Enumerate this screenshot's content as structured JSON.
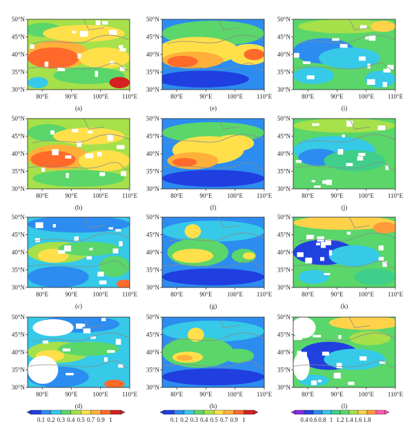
{
  "figure": {
    "panels": [
      {
        "label": "(a)",
        "scheme": "A",
        "pattern": "a"
      },
      {
        "label": "(e)",
        "scheme": "A",
        "pattern": "e"
      },
      {
        "label": "(i)",
        "scheme": "B",
        "pattern": "i"
      },
      {
        "label": "(b)",
        "scheme": "A",
        "pattern": "b"
      },
      {
        "label": "(f)",
        "scheme": "A",
        "pattern": "f"
      },
      {
        "label": "(j)",
        "scheme": "B",
        "pattern": "j"
      },
      {
        "label": "(c)",
        "scheme": "A",
        "pattern": "c"
      },
      {
        "label": "(g)",
        "scheme": "A",
        "pattern": "g"
      },
      {
        "label": "(k)",
        "scheme": "B",
        "pattern": "k"
      },
      {
        "label": "(d)",
        "scheme": "A",
        "pattern": "d"
      },
      {
        "label": "(h)",
        "scheme": "A",
        "pattern": "h"
      },
      {
        "label": "(l)",
        "scheme": "B",
        "pattern": "l"
      }
    ],
    "lat_ticks": [
      "30°N",
      "35°N",
      "40°N",
      "45°N",
      "50°N"
    ],
    "lon_ticks": [
      "80°E",
      "90°E",
      "100°E",
      "110°E"
    ],
    "colorbars": [
      {
        "scheme": "A",
        "labels": [
          "0.1",
          "0.2",
          "0.3",
          "0.4",
          "0.5",
          "0.7",
          "0.9",
          "1"
        ]
      },
      {
        "scheme": "A",
        "labels": [
          "0.1",
          "0.2",
          "0.3",
          "0.4",
          "0.5",
          "0.7",
          "0.9",
          "1"
        ]
      },
      {
        "scheme": "B",
        "labels": [
          "0.4",
          "0.6",
          "0.8",
          "1",
          "1.2",
          "1.4",
          "1.6",
          "1.8"
        ]
      }
    ],
    "colors": {
      "A": [
        "#1f3fe0",
        "#2d8cf0",
        "#36c9e8",
        "#5ad66a",
        "#a6e04a",
        "#ffe04a",
        "#ffb03a",
        "#ff6a2a",
        "#d42020"
      ],
      "B": [
        "#8a2be2",
        "#2040e0",
        "#2d8cf0",
        "#36c9e8",
        "#3fcf8a",
        "#5ad66a",
        "#a6e04a",
        "#ffd24a",
        "#ff9a3a",
        "#ff5ab0"
      ]
    }
  }
}
